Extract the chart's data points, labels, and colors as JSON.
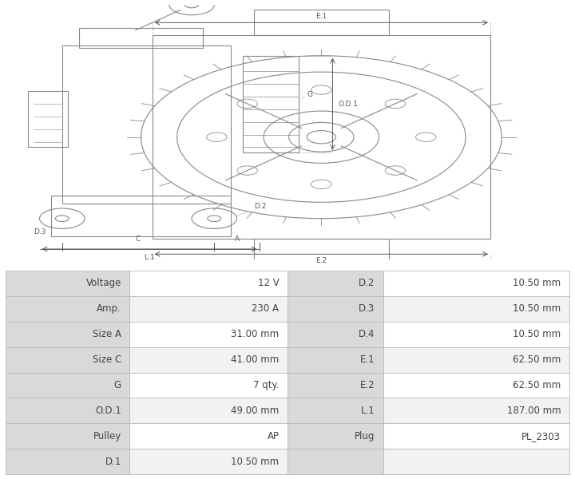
{
  "title": "",
  "table_data": [
    [
      "Voltage",
      "12 V",
      "D.2",
      "10.50 mm"
    ],
    [
      "Amp.",
      "230 A",
      "D.3",
      "10.50 mm"
    ],
    [
      "Size A",
      "31.00 mm",
      "D.4",
      "10.50 mm"
    ],
    [
      "Size C",
      "41.00 mm",
      "E.1",
      "62.50 mm"
    ],
    [
      "G",
      "7 qty.",
      "E.2",
      "62.50 mm"
    ],
    [
      "O.D.1",
      "49.00 mm",
      "L.1",
      "187.00 mm"
    ],
    [
      "Pulley",
      "AP",
      "Plug",
      "PL_2303"
    ],
    [
      "D.1",
      "10.50 mm",
      "",
      ""
    ]
  ],
  "col_labels": [
    "",
    "",
    "",
    ""
  ],
  "bg_color": "#ffffff",
  "header_bg": "#d9d9d9",
  "row_bg_alt": "#f2f2f2",
  "row_bg_norm": "#ffffff",
  "border_color": "#bbbbbb",
  "text_color": "#444444",
  "drawing_bg": "#ffffff",
  "line_color": "#888888",
  "label_color": "#555555"
}
